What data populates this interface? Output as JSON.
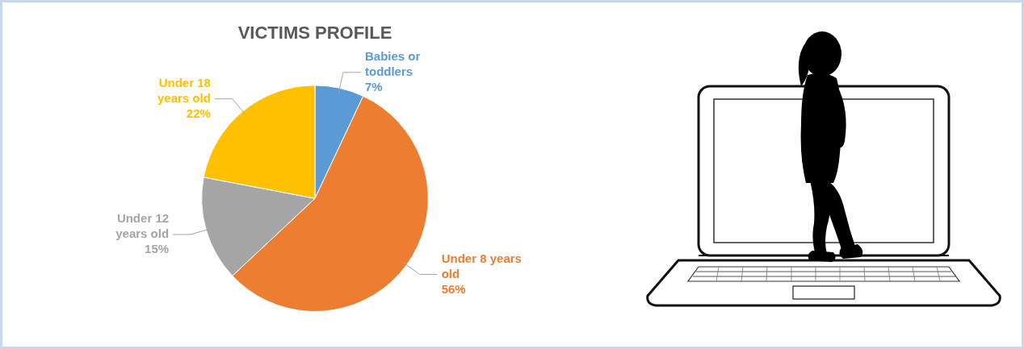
{
  "chart_data": {
    "type": "pie",
    "title": "VICTIMS PROFILE",
    "categories": [
      "Babies or toddlers",
      "Under 8 years old",
      "Under 12 years old",
      "Under 18 years old"
    ],
    "values": [
      7,
      56,
      15,
      22
    ],
    "value_labels": [
      "7%",
      "56%",
      "15%",
      "22%"
    ],
    "colors": [
      "#5b9bd5",
      "#ed7d31",
      "#a5a5a5",
      "#ffc000"
    ],
    "data_labels": true
  }
}
